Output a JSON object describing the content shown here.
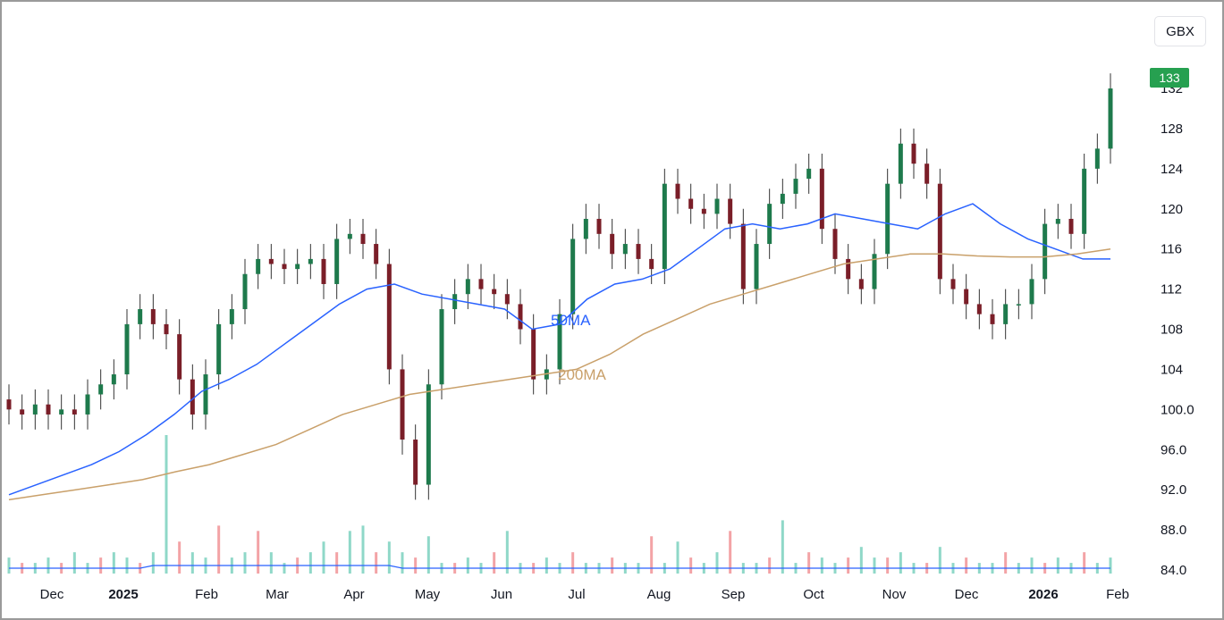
{
  "header": {
    "currency_label": "GBX"
  },
  "price_badge": "133",
  "chart_data": {
    "type": "candlestick",
    "title": "",
    "x_ticks": [
      {
        "label": "Dec",
        "bold": false
      },
      {
        "label": "2025",
        "bold": true
      },
      {
        "label": "Feb",
        "bold": false
      },
      {
        "label": "Mar",
        "bold": false
      },
      {
        "label": "Apr",
        "bold": false
      },
      {
        "label": "May",
        "bold": false
      },
      {
        "label": "Jun",
        "bold": false
      },
      {
        "label": "Jul",
        "bold": false
      },
      {
        "label": "Aug",
        "bold": false
      },
      {
        "label": "Sep",
        "bold": false
      },
      {
        "label": "Oct",
        "bold": false
      },
      {
        "label": "Nov",
        "bold": false
      },
      {
        "label": "Dec",
        "bold": false
      },
      {
        "label": "2026",
        "bold": true
      },
      {
        "label": "Feb",
        "bold": false
      }
    ],
    "y_ticks": [
      "84.0",
      "88.0",
      "92.0",
      "96.0",
      "100.0",
      "104",
      "108",
      "112",
      "116",
      "120",
      "124",
      "128",
      "132"
    ],
    "ylim": [
      84,
      133
    ],
    "last_price": 133,
    "series": [
      {
        "name": "50MA",
        "color": "#2962ff",
        "values": [
          91.5,
          92.5,
          93.5,
          94.5,
          95.8,
          97.5,
          99.5,
          101.8,
          103,
          104.5,
          106.5,
          108.5,
          110.5,
          112,
          112.5,
          111.5,
          111,
          110.5,
          110,
          108,
          108.5,
          111,
          112.5,
          113,
          114,
          116,
          118,
          118.5,
          118,
          118.5,
          119.5,
          119,
          118.5,
          118,
          119.5,
          120.5,
          118.5,
          117,
          116,
          115,
          115
        ]
      },
      {
        "name": "200MA",
        "color": "#c9a06a",
        "values": [
          91,
          91.5,
          92,
          92.5,
          93,
          93.8,
          94.5,
          95.5,
          96.5,
          98,
          99.5,
          100.5,
          101.5,
          102,
          102.5,
          103,
          103.5,
          104,
          105.5,
          107.5,
          109,
          110.5,
          111.5,
          112.5,
          113.5,
          114.5,
          115,
          115.5,
          115.5,
          115.3,
          115.2,
          115.2,
          115.5,
          116
        ]
      }
    ],
    "candles_close": [
      100,
      99.5,
      100.5,
      99.5,
      100,
      99.5,
      101.5,
      102.5,
      103.5,
      108.5,
      110,
      108.5,
      107.5,
      103,
      99.5,
      103.5,
      108.5,
      110,
      113.5,
      115,
      114.5,
      114,
      114.5,
      115,
      112.5,
      117,
      117.5,
      116.5,
      114.5,
      104,
      97,
      92.5,
      102.5,
      110,
      111.5,
      113,
      112,
      111.5,
      110.5,
      108,
      103,
      104,
      109.5,
      117,
      119,
      117.5,
      115.5,
      116.5,
      115,
      114,
      122.5,
      121,
      120,
      119.5,
      121,
      118.5,
      112,
      116.5,
      120.5,
      121.5,
      123,
      124,
      118,
      115,
      113,
      112,
      115.5,
      122.5,
      126.5,
      124.5,
      122.5,
      113,
      112,
      110.5,
      109.5,
      108.5,
      110.5,
      110.5,
      113,
      118.5,
      119,
      117.5,
      124,
      126,
      132
    ],
    "volume": {
      "max": 13,
      "values": [
        1.5,
        1,
        1,
        1.5,
        1,
        2,
        1,
        1.5,
        2,
        1.5,
        1,
        2,
        13,
        3,
        2,
        1.5,
        4.5,
        1.5,
        2,
        4,
        2,
        1,
        1.5,
        2,
        3,
        2,
        4,
        4.5,
        2,
        3,
        2,
        1.5,
        3.5,
        1,
        1,
        1.5,
        1,
        2,
        4,
        1,
        1,
        1.5,
        1,
        2,
        1,
        1,
        1.5,
        1,
        1,
        3.5,
        1,
        3,
        1.5,
        1,
        2,
        4,
        1,
        1,
        1.5,
        5,
        1,
        2,
        1.5,
        1,
        1.5,
        2.5,
        1.5,
        1.5,
        2,
        1,
        1,
        2.5,
        1,
        1.5,
        1,
        1,
        2,
        1,
        1.5,
        1,
        1.5,
        1,
        2,
        1,
        1.5
      ]
    },
    "annotations": [
      "50MA",
      "200MA"
    ]
  }
}
